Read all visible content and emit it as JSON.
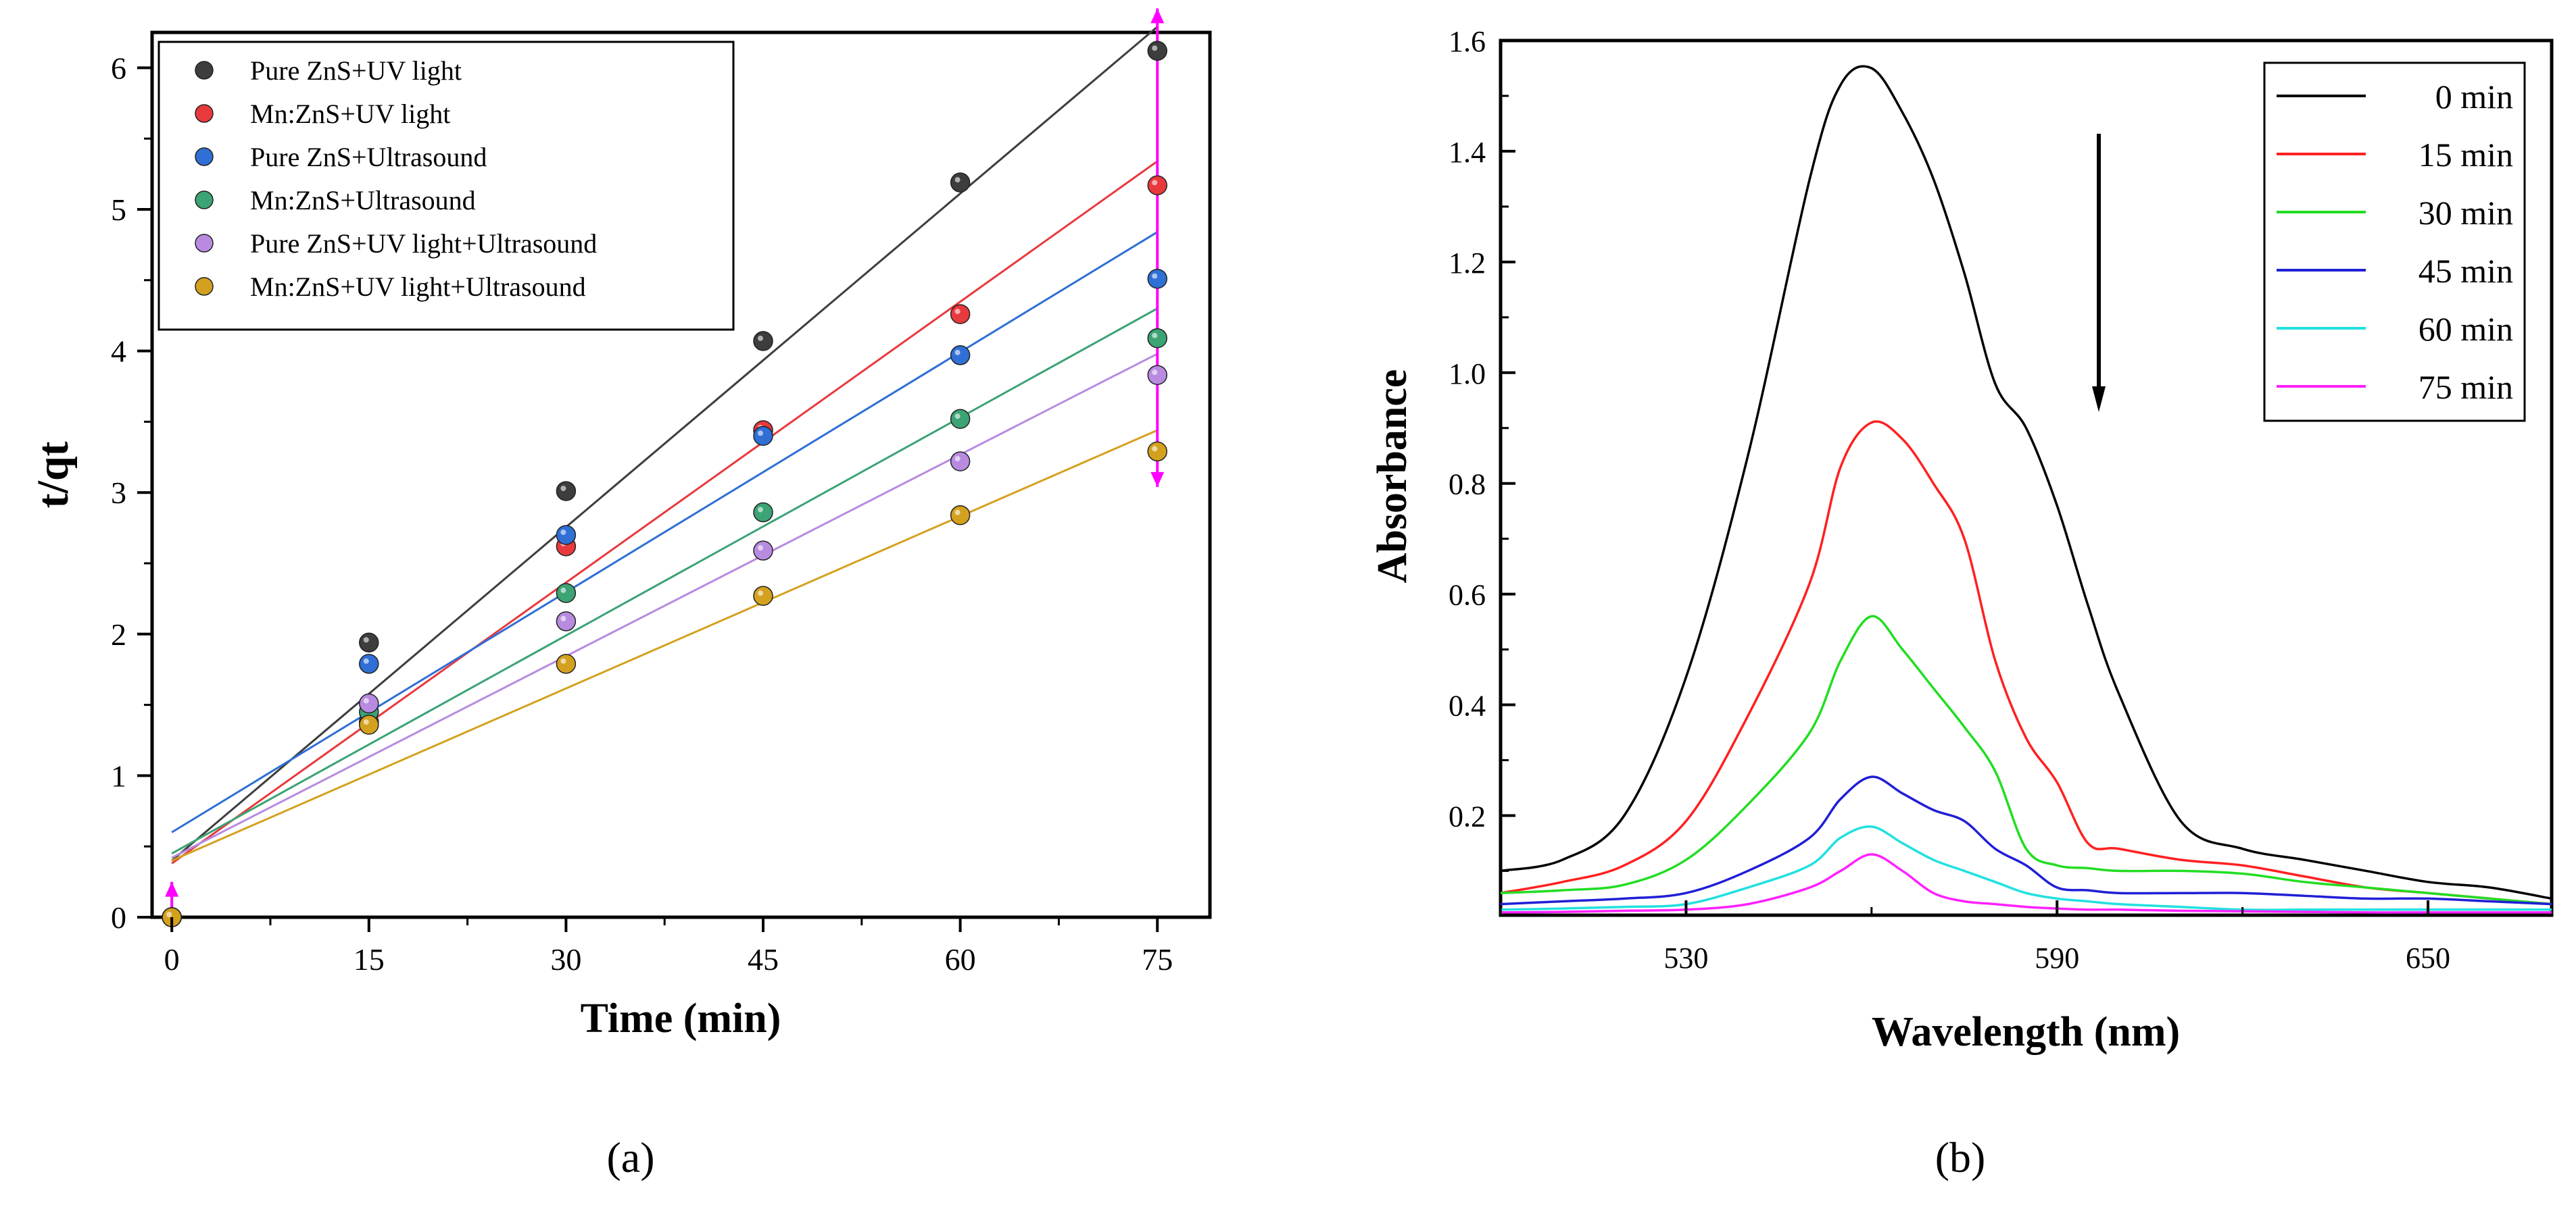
{
  "chart_data": [
    {
      "panel": "(a)",
      "type": "scatter",
      "xlabel": "Time (min)",
      "ylabel": "t/qt",
      "xlim": [
        -1.5,
        79
      ],
      "ylim": [
        0,
        6.25
      ],
      "xticks": [
        0,
        15,
        30,
        45,
        60,
        75
      ],
      "yticks": [
        0,
        1,
        2,
        3,
        4,
        5,
        6
      ],
      "legend_position": "top-left",
      "x": [
        0,
        15,
        30,
        45,
        60,
        75
      ],
      "series": [
        {
          "name": "Pure ZnS+UV light",
          "color": "#3d3d3d",
          "values": [
            0,
            1.94,
            3.01,
            4.07,
            5.19,
            6.12
          ],
          "fit": [
            0.4,
            6.29
          ]
        },
        {
          "name": "Mn:ZnS+UV light",
          "color": "#e8393d",
          "values": [
            0,
            1.38,
            2.62,
            3.44,
            4.26,
            5.17
          ],
          "fit": [
            0.38,
            5.34
          ]
        },
        {
          "name": "Pure ZnS+Ultrasound",
          "color": "#2f6fd6",
          "values": [
            0,
            1.79,
            2.7,
            3.4,
            3.97,
            4.51
          ],
          "fit": [
            0.6,
            4.84
          ]
        },
        {
          "name": "Mn:ZnS+Ultrasound",
          "color": "#3ba374",
          "values": [
            0,
            1.45,
            2.29,
            2.86,
            3.52,
            4.09
          ],
          "fit": [
            0.45,
            4.3
          ]
        },
        {
          "name": "Pure ZnS+UV light+Ultrasound",
          "color": "#b88be0",
          "values": [
            0,
            1.51,
            2.09,
            2.59,
            3.22,
            3.83
          ],
          "fit": [
            0.42,
            3.98
          ]
        },
        {
          "name": "Mn:ZnS+UV light+Ultrasound",
          "color": "#d4a11e",
          "values": [
            0,
            1.36,
            1.79,
            2.27,
            2.84,
            3.29
          ],
          "fit": [
            0.4,
            3.44
          ]
        }
      ],
      "error_bar_color": "#ff00ff"
    },
    {
      "panel": "(b)",
      "type": "line",
      "xlabel": "Wavelength (nm)",
      "ylabel": "Absorbance",
      "xlim": [
        500,
        670
      ],
      "ylim": [
        0.02,
        1.6
      ],
      "xticks": [
        530,
        590,
        650
      ],
      "yticks": [
        0.2,
        0.4,
        0.6,
        0.8,
        1.0,
        1.2,
        1.4,
        1.6
      ],
      "legend_position": "top-right",
      "annotation": "downward arrow",
      "x": [
        500,
        510,
        520,
        530,
        540,
        550,
        555,
        560,
        565,
        570,
        575,
        580,
        585,
        590,
        595,
        600,
        610,
        620,
        630,
        640,
        650,
        660,
        670
      ],
      "series": [
        {
          "name": "0 min",
          "color": "#000000",
          "values": [
            0.1,
            0.12,
            0.2,
            0.45,
            0.85,
            1.35,
            1.52,
            1.55,
            1.47,
            1.35,
            1.18,
            0.98,
            0.9,
            0.76,
            0.58,
            0.42,
            0.19,
            0.14,
            0.12,
            0.1,
            0.08,
            0.07,
            0.05
          ]
        },
        {
          "name": "15 min",
          "color": "#ff2020",
          "values": [
            0.06,
            0.08,
            0.11,
            0.19,
            0.38,
            0.62,
            0.83,
            0.91,
            0.88,
            0.8,
            0.7,
            0.48,
            0.34,
            0.26,
            0.15,
            0.14,
            0.12,
            0.11,
            0.09,
            0.07,
            0.06,
            0.05,
            0.04
          ]
        },
        {
          "name": "30 min",
          "color": "#22dd22",
          "values": [
            0.06,
            0.065,
            0.075,
            0.12,
            0.22,
            0.35,
            0.48,
            0.56,
            0.5,
            0.43,
            0.36,
            0.28,
            0.14,
            0.11,
            0.105,
            0.1,
            0.1,
            0.095,
            0.08,
            0.07,
            0.06,
            0.05,
            0.04
          ]
        },
        {
          "name": "45 min",
          "color": "#1f1fd6",
          "values": [
            0.04,
            0.045,
            0.05,
            0.06,
            0.1,
            0.16,
            0.23,
            0.27,
            0.24,
            0.21,
            0.19,
            0.14,
            0.11,
            0.07,
            0.065,
            0.06,
            0.06,
            0.06,
            0.055,
            0.05,
            0.05,
            0.045,
            0.04
          ]
        },
        {
          "name": "60 min",
          "color": "#22e0e0",
          "values": [
            0.03,
            0.032,
            0.035,
            0.04,
            0.07,
            0.11,
            0.16,
            0.18,
            0.15,
            0.12,
            0.1,
            0.08,
            0.06,
            0.05,
            0.045,
            0.04,
            0.035,
            0.03,
            0.03,
            0.03,
            0.03,
            0.03,
            0.03
          ]
        },
        {
          "name": "75 min",
          "color": "#ff20ff",
          "values": [
            0.025,
            0.026,
            0.028,
            0.03,
            0.04,
            0.07,
            0.1,
            0.13,
            0.1,
            0.06,
            0.045,
            0.04,
            0.035,
            0.032,
            0.03,
            0.03,
            0.028,
            0.027,
            0.026,
            0.025,
            0.025,
            0.025,
            0.025
          ]
        }
      ]
    }
  ],
  "captions": {
    "a": "(a)",
    "b": "(b)"
  }
}
